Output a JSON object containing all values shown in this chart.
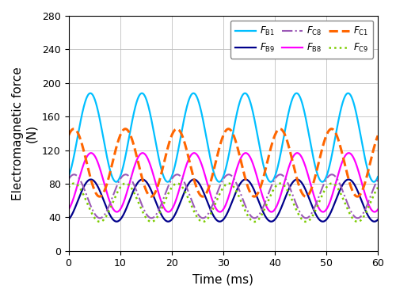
{
  "title": "",
  "xlabel": "Time (ms)",
  "ylabel": "Electromagnetic force\n(N)",
  "xlim": [
    0,
    60
  ],
  "ylim": [
    0,
    280
  ],
  "yticks": [
    0,
    40,
    80,
    120,
    160,
    200,
    240,
    280
  ],
  "xticks": [
    0,
    10,
    20,
    30,
    40,
    50,
    60
  ],
  "series": [
    {
      "label": "$F_{\\mathrm{B1}}$",
      "color": "#00BFFF",
      "linestyle": "solid",
      "linewidth": 1.6,
      "A1": 160,
      "phi1": -1.5708,
      "A2": 110,
      "phi2": 2.094
    },
    {
      "label": "$F_{\\mathrm{B9}}$",
      "color": "#00008B",
      "linestyle": "solid",
      "linewidth": 1.6,
      "A1": 70,
      "phi1": -1.5708,
      "A2": 50,
      "phi2": 2.094
    },
    {
      "label": "$F_{\\mathrm{B8}}$",
      "color": "#FF00FF",
      "linestyle": "solid",
      "linewidth": 1.6,
      "A1": 95,
      "phi1": -1.5708,
      "A2": 68,
      "phi2": 2.094
    },
    {
      "label": "$F_{\\mathrm{C1}}$",
      "color": "#FF6600",
      "linestyle": "dashed",
      "linewidth": 2.2,
      "A1": 115,
      "phi1": 0.5236,
      "A2": 95,
      "phi2": -1.047
    },
    {
      "label": "$F_{\\mathrm{C8}}$",
      "color": "#9B59B6",
      "linestyle": "dashdot",
      "linewidth": 1.5,
      "A1": 75,
      "phi1": 0.5236,
      "A2": 55,
      "phi2": -1.047
    },
    {
      "label": "$F_{\\mathrm{C9}}$",
      "color": "#7CCC00",
      "linestyle": "dotted",
      "linewidth": 1.8,
      "A1": 65,
      "phi1": 0.5236,
      "A2": 50,
      "phi2": -1.047
    }
  ],
  "background_color": "#ffffff",
  "grid_color": "#c0c0c0",
  "legend_fontsize": 8.5,
  "axis_fontsize": 11,
  "tick_fontsize": 9
}
